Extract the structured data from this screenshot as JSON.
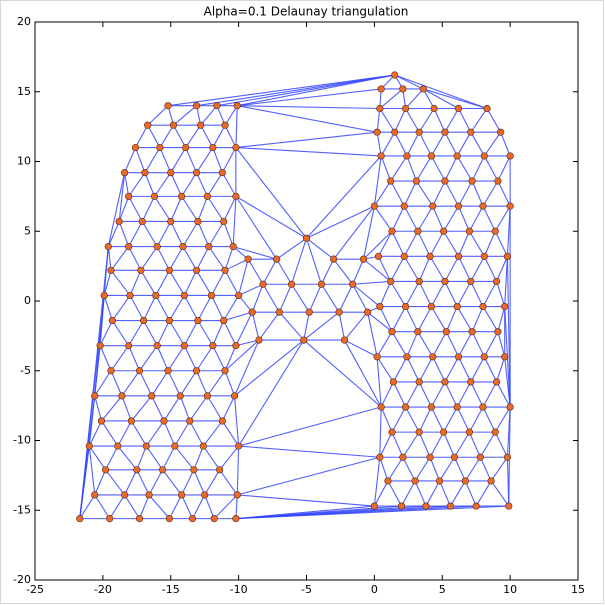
{
  "chart_data": {
    "type": "triangulation",
    "title": "Alpha=0.1 Delaunay triangulation",
    "edge_color": "#3344ff",
    "point_color": "#e8692a",
    "xlim": [
      -25,
      15
    ],
    "ylim": [
      -20,
      20
    ],
    "xticks": [
      -25,
      -20,
      -15,
      -10,
      -5,
      0,
      5,
      10,
      15
    ],
    "yticks": [
      -20,
      -15,
      -10,
      -5,
      0,
      5,
      10,
      15,
      20
    ],
    "x": [
      -21.7,
      -19.5,
      -17.3,
      -15.1,
      -13.4,
      -11.8,
      -10.2,
      -20.6,
      -18.4,
      -16.6,
      -14.2,
      -12.5,
      -10.1,
      -19.8,
      -17.5,
      -15.6,
      -13.3,
      -11.4,
      -21.0,
      -18.9,
      -16.8,
      -14.7,
      -12.6,
      -10.0,
      -20.1,
      -17.9,
      -15.5,
      -13.6,
      -11.2,
      -20.6,
      -18.6,
      -16.4,
      -14.3,
      -12.3,
      -10.3,
      -19.4,
      -17.3,
      -15.2,
      -13.1,
      -11.0,
      -20.2,
      -18.1,
      -16.0,
      -14.0,
      -11.9,
      -10.2,
      -19.3,
      -17.0,
      -15.1,
      -13.0,
      -11.1,
      -19.9,
      -18.0,
      -16.1,
      -14.0,
      -12.0,
      -10.0,
      -19.4,
      -17.2,
      -15.1,
      -13.1,
      -11.0,
      -19.6,
      -18.1,
      -16.0,
      -14.1,
      -12.2,
      -10.4,
      -18.8,
      -17.1,
      -15.0,
      -13.0,
      -11.1,
      -18.1,
      -16.2,
      -14.2,
      -12.3,
      -10.2,
      -18.4,
      -16.9,
      -15.0,
      -13.1,
      -11.2,
      -17.6,
      -15.8,
      -13.9,
      -11.9,
      -10.2,
      -16.7,
      -14.8,
      -12.8,
      -11.0,
      -15.2,
      -13.1,
      -11.6,
      -10.1,
      -8.5,
      -5.2,
      -2.2,
      -9.0,
      -7.0,
      -4.8,
      -2.6,
      -0.5,
      -8.2,
      -6.1,
      -3.9,
      -1.6,
      -9.3,
      -7.2,
      -3.0,
      -0.8,
      -5.0,
      0.0,
      2.0,
      3.8,
      5.6,
      7.5,
      9.9,
      1.0,
      3.0,
      4.8,
      6.7,
      8.6,
      0.4,
      2.1,
      4.1,
      5.9,
      7.8,
      9.8,
      1.3,
      3.3,
      5.1,
      7.0,
      8.9,
      0.5,
      2.3,
      4.2,
      6.1,
      8.0,
      10.0,
      1.4,
      3.3,
      5.2,
      7.1,
      9.0,
      0.2,
      2.4,
      4.3,
      6.2,
      8.1,
      9.6,
      1.3,
      3.2,
      5.3,
      7.2,
      9.1,
      0.4,
      2.3,
      4.2,
      6.1,
      8.0,
      9.6,
      1.2,
      3.3,
      5.2,
      7.1,
      9.0,
      0.3,
      2.2,
      4.1,
      6.2,
      8.1,
      9.8,
      1.3,
      3.2,
      5.1,
      7.0,
      8.9,
      0.0,
      2.2,
      4.3,
      6.2,
      8.0,
      10.0,
      1.2,
      3.1,
      5.2,
      7.2,
      9.1,
      0.5,
      2.4,
      4.2,
      6.1,
      8.1,
      10.0,
      0.2,
      1.5,
      3.3,
      5.2,
      7.1,
      9.3,
      0.4,
      2.3,
      4.4,
      6.2,
      8.3,
      0.5,
      2.1,
      3.6,
      1.5
    ],
    "y": [
      -15.6,
      -15.6,
      -15.6,
      -15.6,
      -15.6,
      -15.6,
      -15.6,
      -13.9,
      -13.9,
      -13.9,
      -13.9,
      -13.9,
      -13.9,
      -12.1,
      -12.1,
      -12.1,
      -12.1,
      -12.1,
      -10.4,
      -10.4,
      -10.4,
      -10.4,
      -10.4,
      -10.4,
      -8.6,
      -8.6,
      -8.6,
      -8.6,
      -8.6,
      -6.8,
      -6.8,
      -6.8,
      -6.8,
      -6.8,
      -6.8,
      -5.0,
      -5.0,
      -5.0,
      -5.0,
      -5.0,
      -3.2,
      -3.2,
      -3.2,
      -3.2,
      -3.2,
      -3.2,
      -1.4,
      -1.4,
      -1.4,
      -1.4,
      -1.4,
      0.4,
      0.4,
      0.4,
      0.4,
      0.4,
      0.4,
      2.2,
      2.2,
      2.2,
      2.2,
      2.2,
      3.9,
      3.9,
      3.9,
      3.9,
      3.9,
      3.9,
      5.7,
      5.7,
      5.7,
      5.7,
      5.7,
      7.5,
      7.5,
      7.5,
      7.5,
      7.5,
      9.2,
      9.2,
      9.2,
      9.2,
      9.2,
      11.0,
      11.0,
      11.0,
      11.0,
      11.0,
      12.6,
      12.6,
      12.6,
      12.6,
      14.0,
      14.0,
      14.0,
      14.0,
      -2.8,
      -2.8,
      -2.8,
      -0.8,
      -0.8,
      -0.8,
      -0.8,
      -0.8,
      1.2,
      1.2,
      1.2,
      1.2,
      3.0,
      3.0,
      3.0,
      3.0,
      4.5,
      -14.7,
      -14.7,
      -14.7,
      -14.7,
      -14.7,
      -14.7,
      -12.9,
      -12.9,
      -12.9,
      -12.9,
      -12.9,
      -11.2,
      -11.2,
      -11.2,
      -11.2,
      -11.2,
      -11.2,
      -9.4,
      -9.4,
      -9.4,
      -9.4,
      -9.4,
      -7.6,
      -7.6,
      -7.6,
      -7.6,
      -7.6,
      -7.6,
      -5.8,
      -5.8,
      -5.8,
      -5.8,
      -5.8,
      -4.0,
      -4.0,
      -4.0,
      -4.0,
      -4.0,
      -4.0,
      -2.2,
      -2.2,
      -2.2,
      -2.2,
      -2.2,
      -0.4,
      -0.4,
      -0.4,
      -0.4,
      -0.4,
      -0.4,
      1.4,
      1.4,
      1.4,
      1.4,
      1.4,
      3.2,
      3.2,
      3.2,
      3.2,
      3.2,
      3.2,
      5.0,
      5.0,
      5.0,
      5.0,
      5.0,
      6.8,
      6.8,
      6.8,
      6.8,
      6.8,
      6.8,
      8.6,
      8.6,
      8.6,
      8.6,
      8.6,
      10.4,
      10.4,
      10.4,
      10.4,
      10.4,
      10.4,
      12.1,
      12.1,
      12.1,
      12.1,
      12.1,
      12.1,
      13.8,
      13.8,
      13.8,
      13.8,
      13.8,
      15.2,
      15.2,
      15.2,
      16.2
    ]
  }
}
